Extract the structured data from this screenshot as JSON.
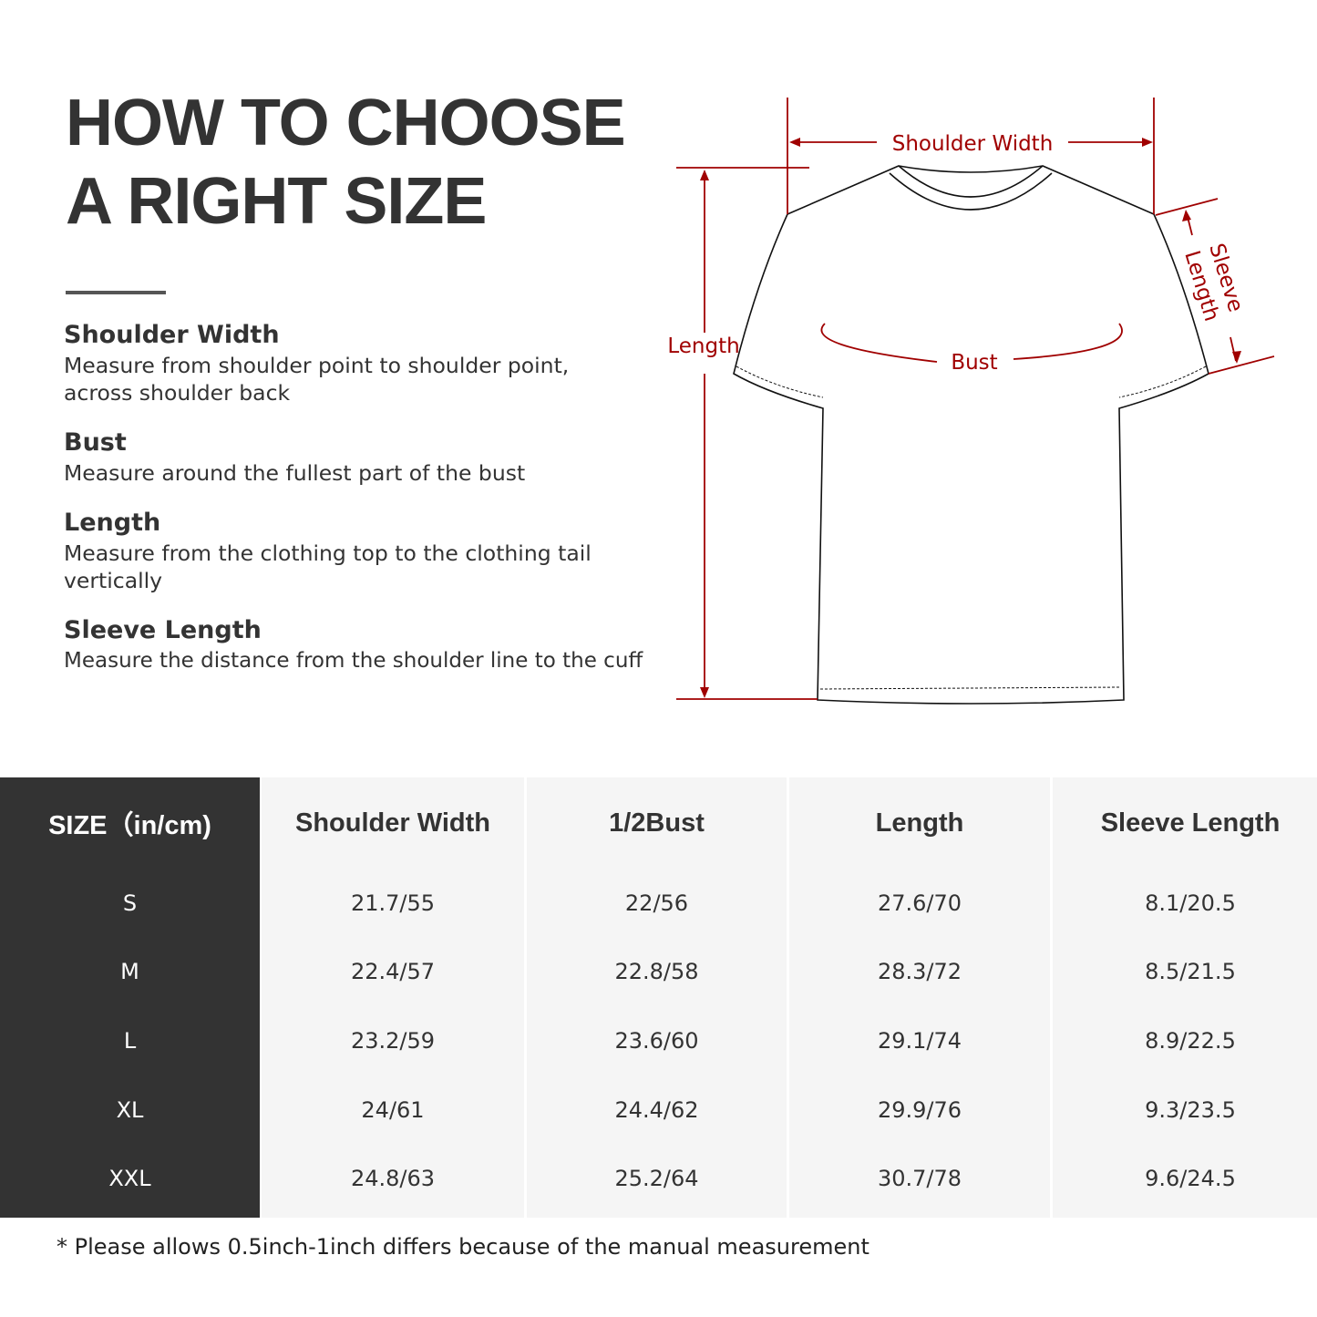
{
  "title": {
    "line1": "HOW TO CHOOSE",
    "line2": "A RIGHT SIZE"
  },
  "definitions": [
    {
      "term": "Shoulder Width",
      "desc": "Measure from shoulder point to shoulder point, across shoulder back"
    },
    {
      "term": "Bust",
      "desc": "Measure around the fullest part of the bust"
    },
    {
      "term": "Length",
      "desc": "Measure from the clothing top to the clothing tail vertically"
    },
    {
      "term": "Sleeve Length",
      "desc": "Measure the distance from the shoulder line to the cuff"
    }
  ],
  "diagram": {
    "shoulder": "Shoulder Width",
    "length": "Length",
    "bust": "Bust",
    "sleeve1": "Sleeve",
    "sleeve2": "Length",
    "accent": "#a00000"
  },
  "table": {
    "headers": [
      "SIZE（in/cm)",
      "Shoulder Width",
      "1/2Bust",
      "Length",
      "Sleeve Length"
    ],
    "rows": [
      [
        "S",
        "21.7/55",
        "22/56",
        "27.6/70",
        "8.1/20.5"
      ],
      [
        "M",
        "22.4/57",
        "22.8/58",
        "28.3/72",
        "8.5/21.5"
      ],
      [
        "L",
        "23.2/59",
        "23.6/60",
        "29.1/74",
        "8.9/22.5"
      ],
      [
        "XL",
        "24/61",
        "24.4/62",
        "29.9/76",
        "9.3/23.5"
      ],
      [
        "XXL",
        "24.8/63",
        "25.2/64",
        "30.7/78",
        "9.6/24.5"
      ]
    ]
  },
  "note": "* Please allows 0.5inch-1inch differs because of the  manual measurement"
}
